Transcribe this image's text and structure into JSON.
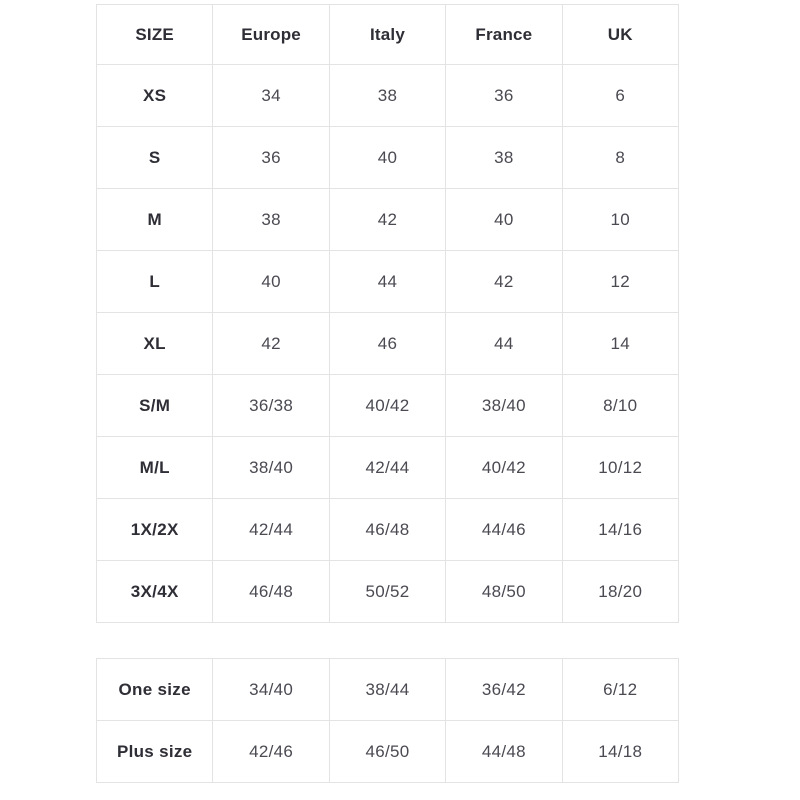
{
  "chart_data": [
    {
      "type": "table",
      "columns": [
        "SIZE",
        "Europe",
        "Italy",
        "France",
        "UK"
      ],
      "rows": [
        [
          "XS",
          "34",
          "38",
          "36",
          "6"
        ],
        [
          "S",
          "36",
          "40",
          "38",
          "8"
        ],
        [
          "M",
          "38",
          "42",
          "40",
          "10"
        ],
        [
          "L",
          "40",
          "44",
          "42",
          "12"
        ],
        [
          "XL",
          "42",
          "46",
          "44",
          "14"
        ],
        [
          "S/M",
          "36/38",
          "40/42",
          "38/40",
          "8/10"
        ],
        [
          "M/L",
          "38/40",
          "42/44",
          "40/42",
          "10/12"
        ],
        [
          "1X/2X",
          "42/44",
          "46/48",
          "44/46",
          "14/16"
        ],
        [
          "3X/4X",
          "46/48",
          "50/52",
          "48/50",
          "18/20"
        ]
      ]
    },
    {
      "type": "table",
      "columns": [],
      "rows": [
        [
          "One size",
          "34/40",
          "38/44",
          "36/42",
          "6/12"
        ],
        [
          "Plus size",
          "42/46",
          "46/50",
          "44/48",
          "14/18"
        ]
      ]
    }
  ],
  "colors": {
    "background": "#ffffff",
    "border": "#e3e3e3",
    "header_text": "#2e2e36",
    "value_text": "#4a4a52"
  }
}
